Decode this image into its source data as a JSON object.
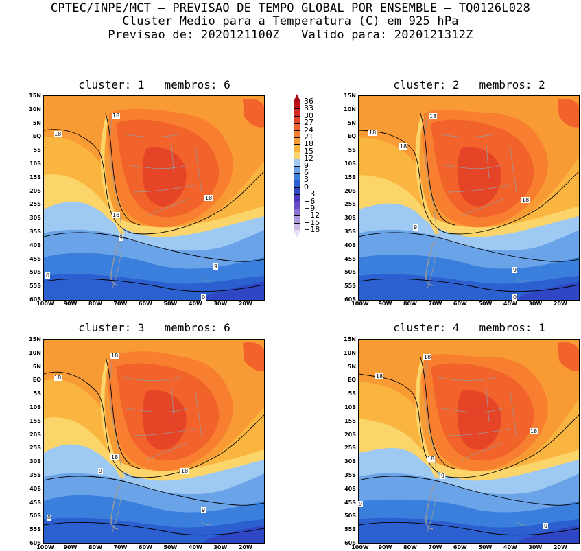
{
  "header": {
    "line1": "CPTEC/INPE/MCT – PREVISAO DE TEMPO GLOBAL POR ENSEMBLE – TQ0126L028",
    "line2": "Cluster Medio para a Temperatura (C) em 925 hPa",
    "line3": "Previsao de: 2020121100Z   Valido para: 2020121312Z"
  },
  "panels": [
    {
      "title": "cluster: 1   membros: 6"
    },
    {
      "title": "cluster: 2   membros: 2"
    },
    {
      "title": "cluster: 3   membros: 6"
    },
    {
      "title": "cluster: 4   membros: 1"
    }
  ],
  "lat_labels": [
    "15N",
    "10N",
    "5N",
    "EQ",
    "5S",
    "10S",
    "15S",
    "20S",
    "25S",
    "30S",
    "35S",
    "40S",
    "45S",
    "50S",
    "55S",
    "60S"
  ],
  "lon_labels": [
    "100W",
    "90W",
    "80W",
    "70W",
    "60W",
    "50W",
    "40W",
    "30W",
    "20W"
  ],
  "colorbar": {
    "labels": [
      "36",
      "33",
      "30",
      "27",
      "24",
      "21",
      "18",
      "15",
      "12",
      "9",
      "6",
      "3",
      "0",
      "−3",
      "−6",
      "−9",
      "−12",
      "−15",
      "−18"
    ],
    "colors": [
      "#c1121c",
      "#d42a23",
      "#e64426",
      "#f2622b",
      "#f77f2f",
      "#f99b34",
      "#f9b53f",
      "#fbd46a",
      "#9ec9f2",
      "#6aa3e8",
      "#3b7fdc",
      "#2c5fcf",
      "#2f47c4",
      "#4a39bf",
      "#6b4ec6",
      "#8b72d2",
      "#ab98de",
      "#cbbce9"
    ],
    "top_arrow_color": "#a50f15",
    "bottom_arrow_color": "#e6dcf3"
  },
  "contour_labels": {
    "c18": "18",
    "c9": "9",
    "c0": "0"
  },
  "map_colors": {
    "ocean_warm": "#f99b34",
    "ocean_mild": "#f9b53f",
    "cool": "#fbd46a",
    "light_blue": "#9ec9f2",
    "mid_blue": "#6aa3e8",
    "blue": "#3b7fdc",
    "dark_blue": "#2c5fcf",
    "deep_blue": "#2f47c4",
    "land_hot": "#f2622b",
    "land_very_hot": "#e64426",
    "land_warm": "#f77f2f",
    "andes": "#fbd46a",
    "border": "#9a9a9a"
  }
}
